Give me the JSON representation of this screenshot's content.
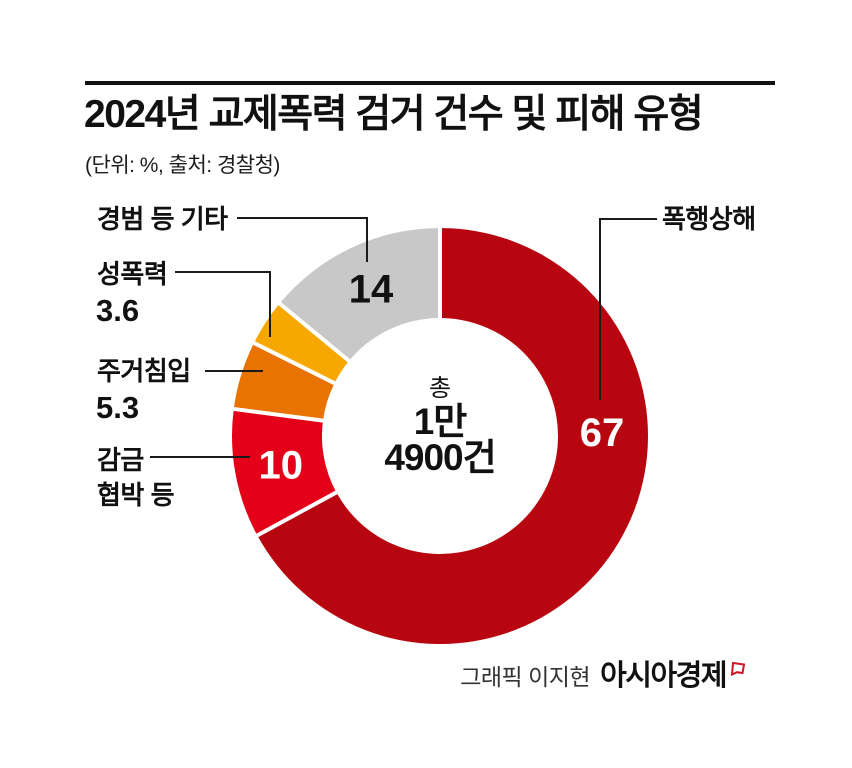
{
  "header": {
    "title": "2024년 교제폭력 검거 건수 및 피해 유형",
    "subtitle": "(단위: %, 출처: 경찰청)"
  },
  "chart_data": {
    "type": "donut",
    "title": "2024년 교제폭력 검거 건수 및 피해 유형",
    "unit": "%",
    "source": "경찰청",
    "start_angle_deg": 0,
    "direction": "clockwise",
    "total_value": 99.9,
    "center_label": [
      "총",
      "1만",
      "4900건"
    ],
    "segments": [
      {
        "label": "폭행상해",
        "value": 67,
        "color": "#b7060f",
        "value_inside": true,
        "value_text_color": "#ffffff"
      },
      {
        "label": "감금 협박 등",
        "value": 10,
        "color": "#e50019",
        "value_inside": true,
        "value_text_color": "#ffffff"
      },
      {
        "label": "주거침입",
        "value": 5.3,
        "color": "#e87300",
        "value_inside": false,
        "value_text_color": "#111111"
      },
      {
        "label": "성폭력",
        "value": 3.6,
        "color": "#f6a800",
        "value_inside": false,
        "value_text_color": "#111111"
      },
      {
        "label": "경범 등 기타",
        "value": 14,
        "color": "#c8c8c9",
        "value_inside": true,
        "value_text_color": "#111111"
      }
    ]
  },
  "credit": {
    "byline": "그래픽 이지현",
    "brand": "아시아경제",
    "brand_mark_color": "#d11326"
  }
}
